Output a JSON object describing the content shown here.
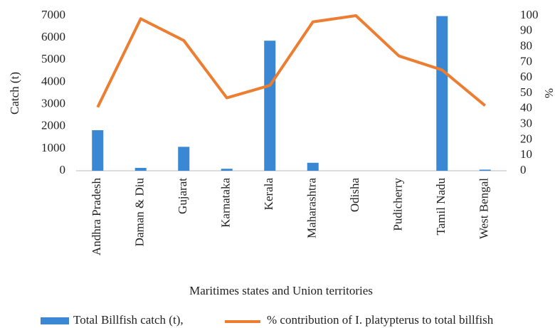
{
  "chart_data": {
    "type": "bar_line",
    "categories": [
      "Andhra Pradesh",
      "Daman & Diu",
      "Gujarat",
      "Karnataka",
      "Kerala",
      "Maharashtra",
      "Odisha",
      "Pudicherry",
      "Tamil Nadu",
      "West Bengal"
    ],
    "series": [
      {
        "name": "Total Billfish catch (t),",
        "type": "bar",
        "color": "#3a87d4",
        "values": [
          1830,
          130,
          1080,
          90,
          5870,
          360,
          0,
          0,
          6980,
          50
        ]
      },
      {
        "name": "% contribution of I. platypterus to total billfish",
        "type": "line",
        "color": "#ed7d31",
        "axis": "y2",
        "values": [
          41,
          98,
          84,
          47,
          55,
          96,
          100,
          74,
          65,
          42
        ]
      }
    ],
    "ylabel": "Catch (t)",
    "y2label": "%",
    "xlabel": "Maritimes states and Union territories",
    "ylim": [
      0,
      7000
    ],
    "yticks": [
      0,
      1000,
      2000,
      3000,
      4000,
      5000,
      6000,
      7000
    ],
    "y2lim": [
      0,
      100
    ],
    "y2ticks": [
      0,
      10,
      20,
      30,
      40,
      50,
      60,
      70,
      80,
      90,
      100
    ],
    "legend": "bottom"
  }
}
